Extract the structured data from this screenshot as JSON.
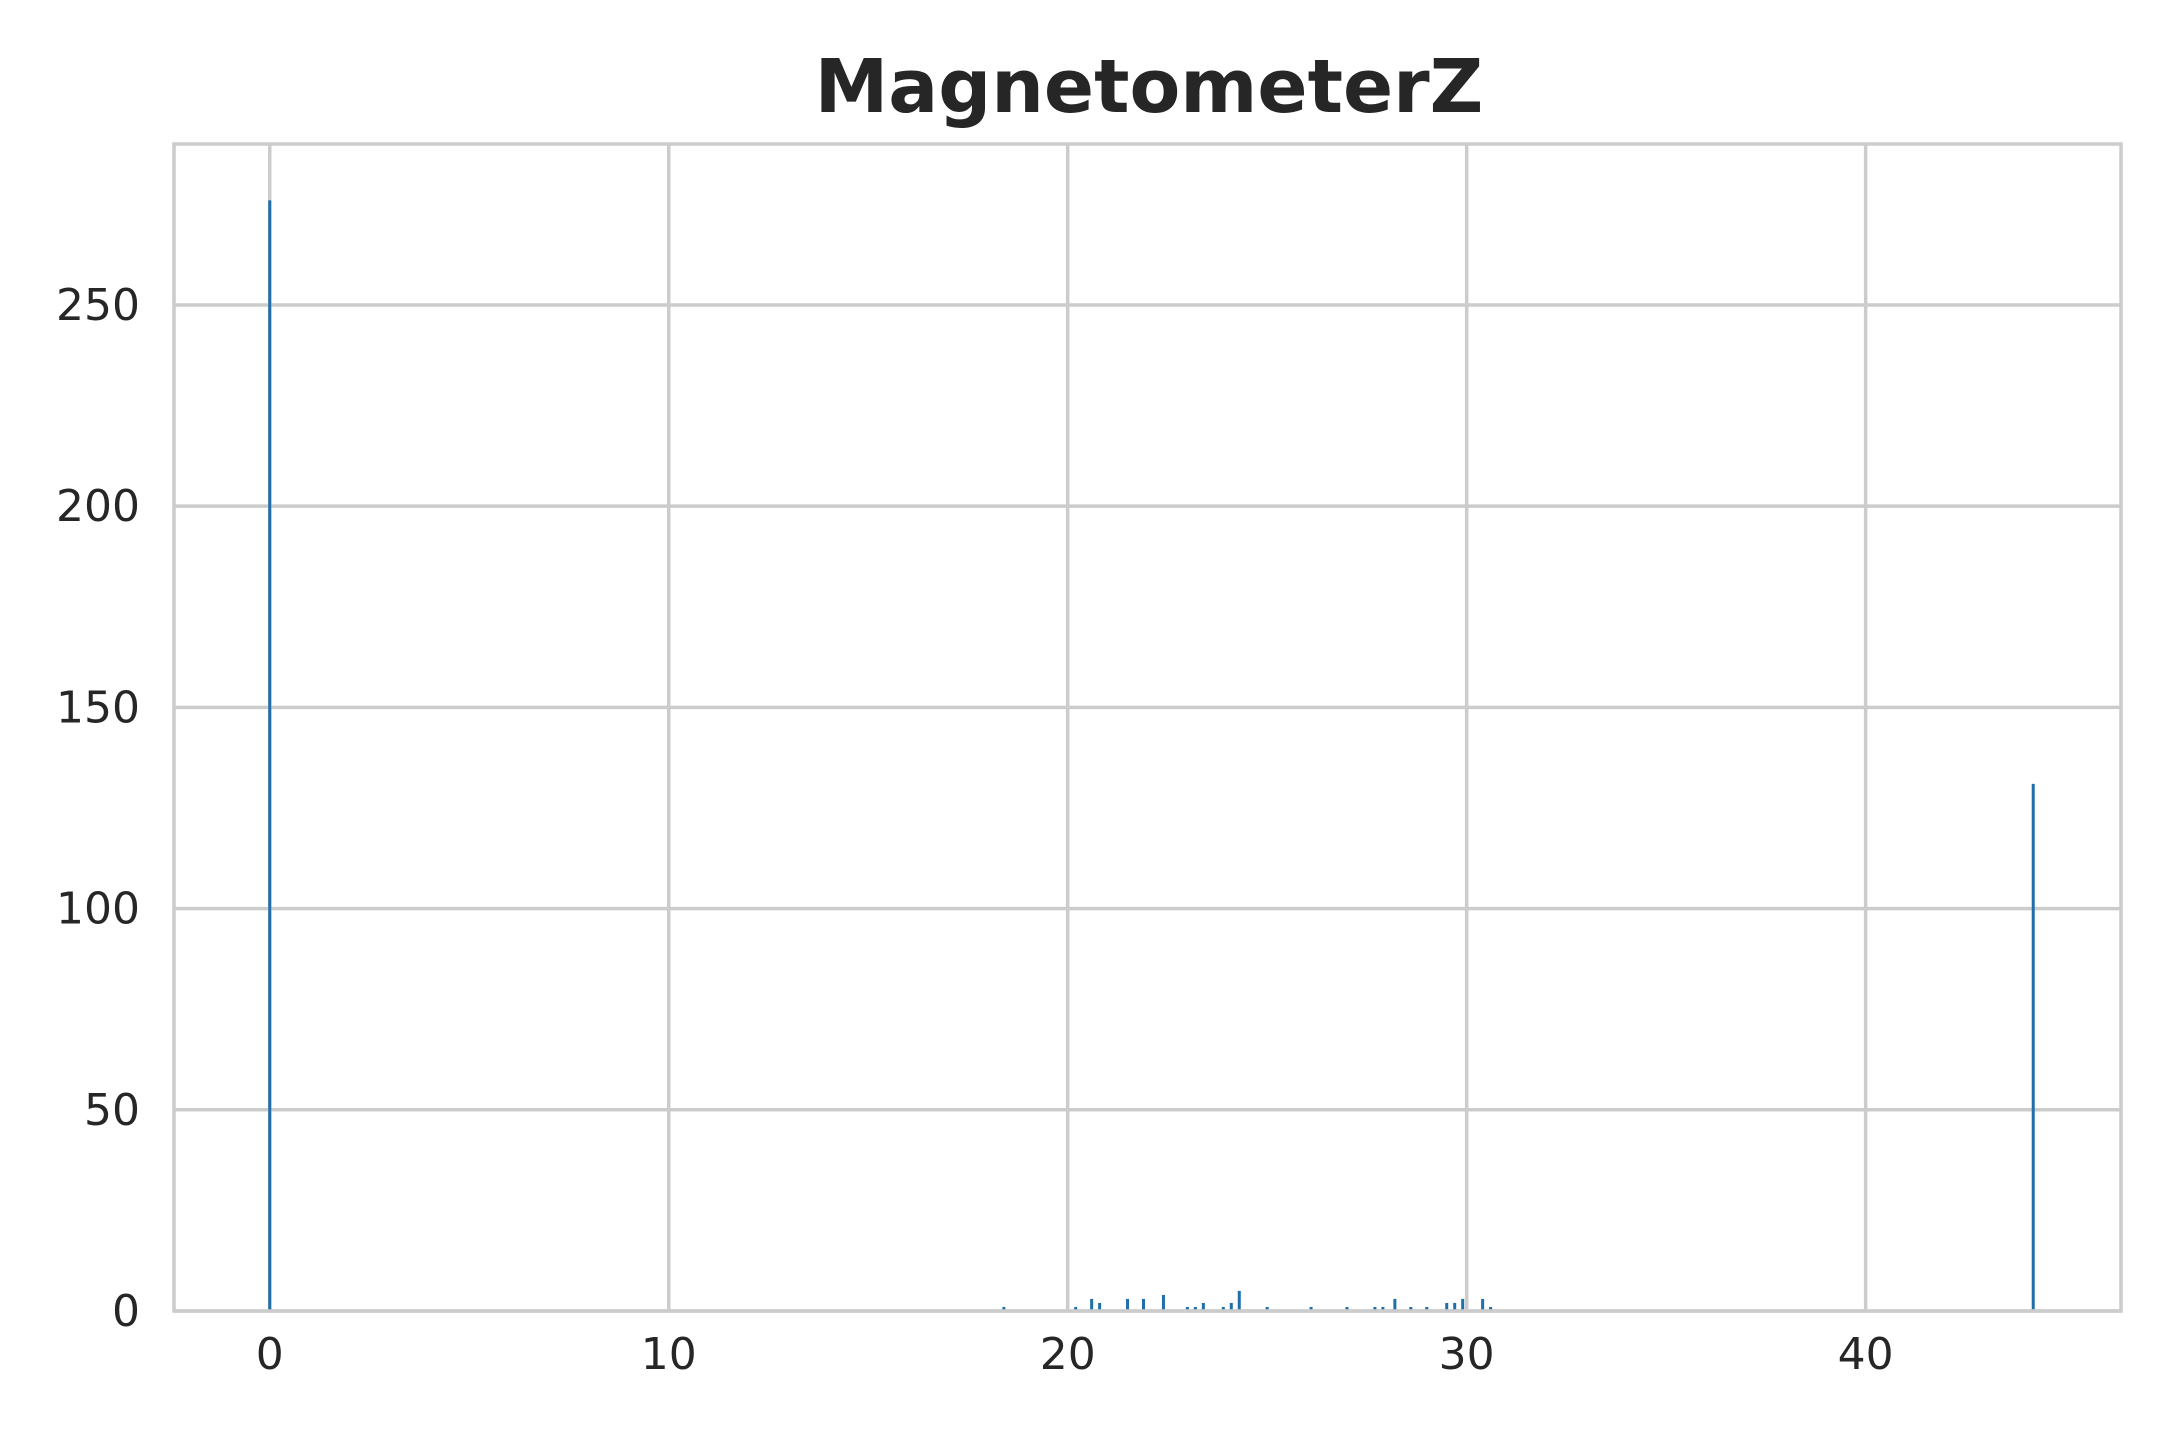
{
  "chart_data": {
    "type": "bar",
    "title": "MagnetometerZ",
    "xlabel": "",
    "ylabel": "",
    "xlim": [
      -2.4,
      46.4
    ],
    "ylim": [
      0,
      290
    ],
    "xticks": [
      0,
      10,
      20,
      30,
      40
    ],
    "xtick_labels": [
      "0",
      "10",
      "20",
      "30",
      "40"
    ],
    "yticks": [
      0,
      50,
      100,
      150,
      200,
      250
    ],
    "ytick_labels": [
      "0",
      "50",
      "100",
      "150",
      "200",
      "250"
    ],
    "grid": true,
    "legend": "none",
    "bar_color": "#1f6fa8",
    "grid_color": "#cccccc",
    "text_color": "#262626",
    "bins": [
      {
        "x": 0.0,
        "count": 276
      },
      {
        "x": 18.4,
        "count": 1
      },
      {
        "x": 20.2,
        "count": 1
      },
      {
        "x": 20.6,
        "count": 3
      },
      {
        "x": 20.8,
        "count": 2
      },
      {
        "x": 21.5,
        "count": 3
      },
      {
        "x": 21.9,
        "count": 3
      },
      {
        "x": 22.4,
        "count": 4
      },
      {
        "x": 23.0,
        "count": 1
      },
      {
        "x": 23.2,
        "count": 1
      },
      {
        "x": 23.4,
        "count": 2
      },
      {
        "x": 23.9,
        "count": 1
      },
      {
        "x": 24.1,
        "count": 2
      },
      {
        "x": 24.3,
        "count": 5
      },
      {
        "x": 25.0,
        "count": 1
      },
      {
        "x": 26.1,
        "count": 1
      },
      {
        "x": 27.0,
        "count": 1
      },
      {
        "x": 27.7,
        "count": 1
      },
      {
        "x": 27.9,
        "count": 1
      },
      {
        "x": 28.2,
        "count": 3
      },
      {
        "x": 28.6,
        "count": 1
      },
      {
        "x": 29.0,
        "count": 1
      },
      {
        "x": 29.5,
        "count": 2
      },
      {
        "x": 29.7,
        "count": 2
      },
      {
        "x": 29.9,
        "count": 3
      },
      {
        "x": 30.4,
        "count": 3
      },
      {
        "x": 30.6,
        "count": 1
      },
      {
        "x": 44.2,
        "count": 131
      }
    ]
  }
}
